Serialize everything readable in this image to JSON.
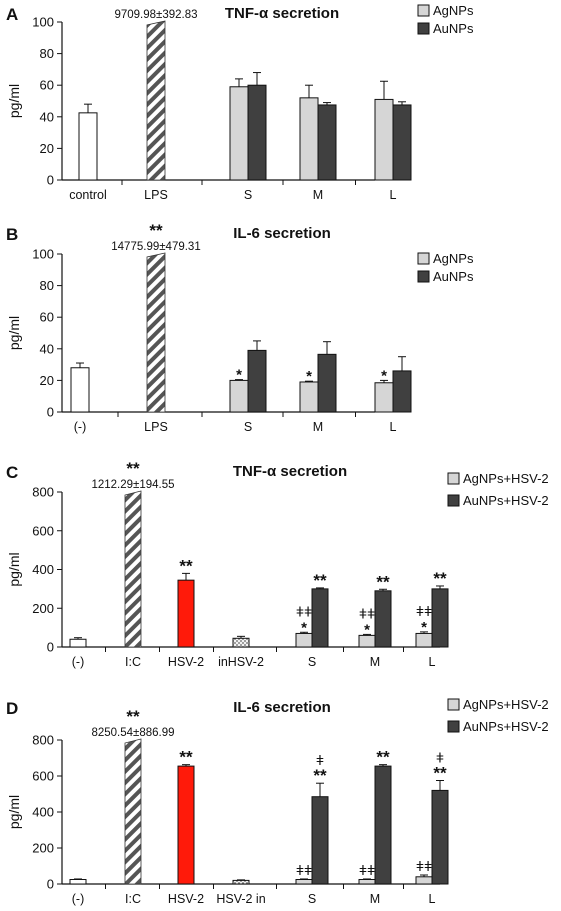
{
  "colors": {
    "control": "#ffffff",
    "silver": "#d6d6d6",
    "gold": "#404040",
    "hsv": "#ff1a0a",
    "hatch": "#555555",
    "axis": "#111111"
  },
  "chart_data": [
    {
      "type": "bar",
      "panel": "A",
      "title": "TNF-α secretion",
      "ylabel": "pg/ml",
      "ylim": [
        0,
        100
      ],
      "yticks": [
        0,
        20,
        40,
        60,
        80,
        100
      ],
      "categories": [
        "control",
        "LPS",
        "S",
        "M",
        "L"
      ],
      "legend": [
        "AgNPs",
        "AuNPs"
      ],
      "bars": [
        {
          "cat": 0,
          "series": "control",
          "value": 42.5,
          "err": 5.5
        },
        {
          "cat": 1,
          "series": "hatch",
          "value": 100,
          "broken": true,
          "label": "9709.98±392.83",
          "sig": "**"
        },
        {
          "cat": 2,
          "series": "AgNPs",
          "value": 59,
          "err": 5
        },
        {
          "cat": 2,
          "series": "AuNPs",
          "value": 60,
          "err": 8
        },
        {
          "cat": 3,
          "series": "AgNPs",
          "value": 52,
          "err": 8
        },
        {
          "cat": 3,
          "series": "AuNPs",
          "value": 47.5,
          "err": 1.5
        },
        {
          "cat": 4,
          "series": "AgNPs",
          "value": 51,
          "err": 11.5
        },
        {
          "cat": 4,
          "series": "AuNPs",
          "value": 47.5,
          "err": 2
        }
      ]
    },
    {
      "type": "bar",
      "panel": "B",
      "title": "IL-6 secretion",
      "ylabel": "pg/ml",
      "ylim": [
        0,
        100
      ],
      "yticks": [
        0,
        20,
        40,
        60,
        80,
        100
      ],
      "categories": [
        "(-)",
        "LPS",
        "S",
        "M",
        "L"
      ],
      "legend": [
        "AgNPs",
        "AuNPs"
      ],
      "bars": [
        {
          "cat": 0,
          "series": "control",
          "value": 28,
          "err": 3
        },
        {
          "cat": 1,
          "series": "hatch",
          "value": 100,
          "broken": true,
          "label": "14775.99±479.31",
          "sig": "**"
        },
        {
          "cat": 2,
          "series": "AgNPs",
          "value": 20,
          "err": 0.5,
          "sig": "*"
        },
        {
          "cat": 2,
          "series": "AuNPs",
          "value": 39,
          "err": 6
        },
        {
          "cat": 3,
          "series": "AgNPs",
          "value": 19,
          "err": 0.5,
          "sig": "*"
        },
        {
          "cat": 3,
          "series": "AuNPs",
          "value": 36.5,
          "err": 8
        },
        {
          "cat": 4,
          "series": "AgNPs",
          "value": 18.5,
          "err": 1.5,
          "sig": "*"
        },
        {
          "cat": 4,
          "series": "AuNPs",
          "value": 26,
          "err": 9
        }
      ]
    },
    {
      "type": "bar",
      "panel": "C",
      "title": "TNF-α secretion",
      "ylabel": "pg/ml",
      "ylim": [
        0,
        800
      ],
      "yticks": [
        0,
        200,
        400,
        600,
        800
      ],
      "categories": [
        "(-)",
        "I:C",
        "HSV-2",
        "inHSV-2",
        "S",
        "M",
        "L"
      ],
      "legend": [
        "AgNPs+HSV-2",
        "AuNPs+HSV-2"
      ],
      "bars": [
        {
          "cat": 0,
          "series": "control",
          "value": 40,
          "err": 8
        },
        {
          "cat": 1,
          "series": "hatch",
          "value": 800,
          "broken": true,
          "label": "1212.29±194.55",
          "sig": "**"
        },
        {
          "cat": 2,
          "series": "hsv",
          "value": 345,
          "err": 35,
          "sig": "**"
        },
        {
          "cat": 3,
          "series": "dots",
          "value": 45,
          "err": 10
        },
        {
          "cat": 4,
          "series": "AgNPs",
          "value": 70,
          "err": 6,
          "sig": "*",
          "dag": "ǂǂ"
        },
        {
          "cat": 4,
          "series": "AuNPs",
          "value": 300,
          "err": 5,
          "sig": "**"
        },
        {
          "cat": 5,
          "series": "AgNPs",
          "value": 60,
          "err": 5,
          "sig": "*",
          "dag": "ǂǂ"
        },
        {
          "cat": 5,
          "series": "AuNPs",
          "value": 290,
          "err": 8,
          "sig": "**"
        },
        {
          "cat": 6,
          "series": "AgNPs",
          "value": 70,
          "err": 8,
          "sig": "*",
          "dag": "ǂǂ"
        },
        {
          "cat": 6,
          "series": "AuNPs",
          "value": 300,
          "err": 15,
          "sig": "**"
        }
      ]
    },
    {
      "type": "bar",
      "panel": "D",
      "title": "IL-6 secretion",
      "ylabel": "pg/ml",
      "ylim": [
        0,
        800
      ],
      "yticks": [
        0,
        200,
        400,
        600,
        800
      ],
      "categories": [
        "(-)",
        "I:C",
        "HSV-2",
        "HSV-2 in",
        "S",
        "M",
        "L"
      ],
      "legend": [
        "AgNPs+HSV-2",
        "AuNPs+HSV-2"
      ],
      "bars": [
        {
          "cat": 0,
          "series": "control",
          "value": 25,
          "err": 3
        },
        {
          "cat": 1,
          "series": "hatch",
          "value": 800,
          "broken": true,
          "label": "8250.54±886.99",
          "sig": "**"
        },
        {
          "cat": 2,
          "series": "hsv",
          "value": 655,
          "err": 8,
          "sig": "**"
        },
        {
          "cat": 3,
          "series": "dots",
          "value": 20,
          "err": 3
        },
        {
          "cat": 4,
          "series": "AgNPs",
          "value": 25,
          "err": 3,
          "dag": "ǂǂ"
        },
        {
          "cat": 4,
          "series": "AuNPs",
          "value": 485,
          "err": 75,
          "sig": "**",
          "dag": "ǂ"
        },
        {
          "cat": 5,
          "series": "AgNPs",
          "value": 25,
          "err": 3,
          "dag": "ǂǂ"
        },
        {
          "cat": 5,
          "series": "AuNPs",
          "value": 655,
          "err": 8,
          "sig": "**"
        },
        {
          "cat": 6,
          "series": "AgNPs",
          "value": 40,
          "err": 10,
          "dag": "ǂǂ"
        },
        {
          "cat": 6,
          "series": "AuNPs",
          "value": 520,
          "err": 55,
          "sig": "**",
          "dag": "ǂ"
        }
      ]
    }
  ]
}
